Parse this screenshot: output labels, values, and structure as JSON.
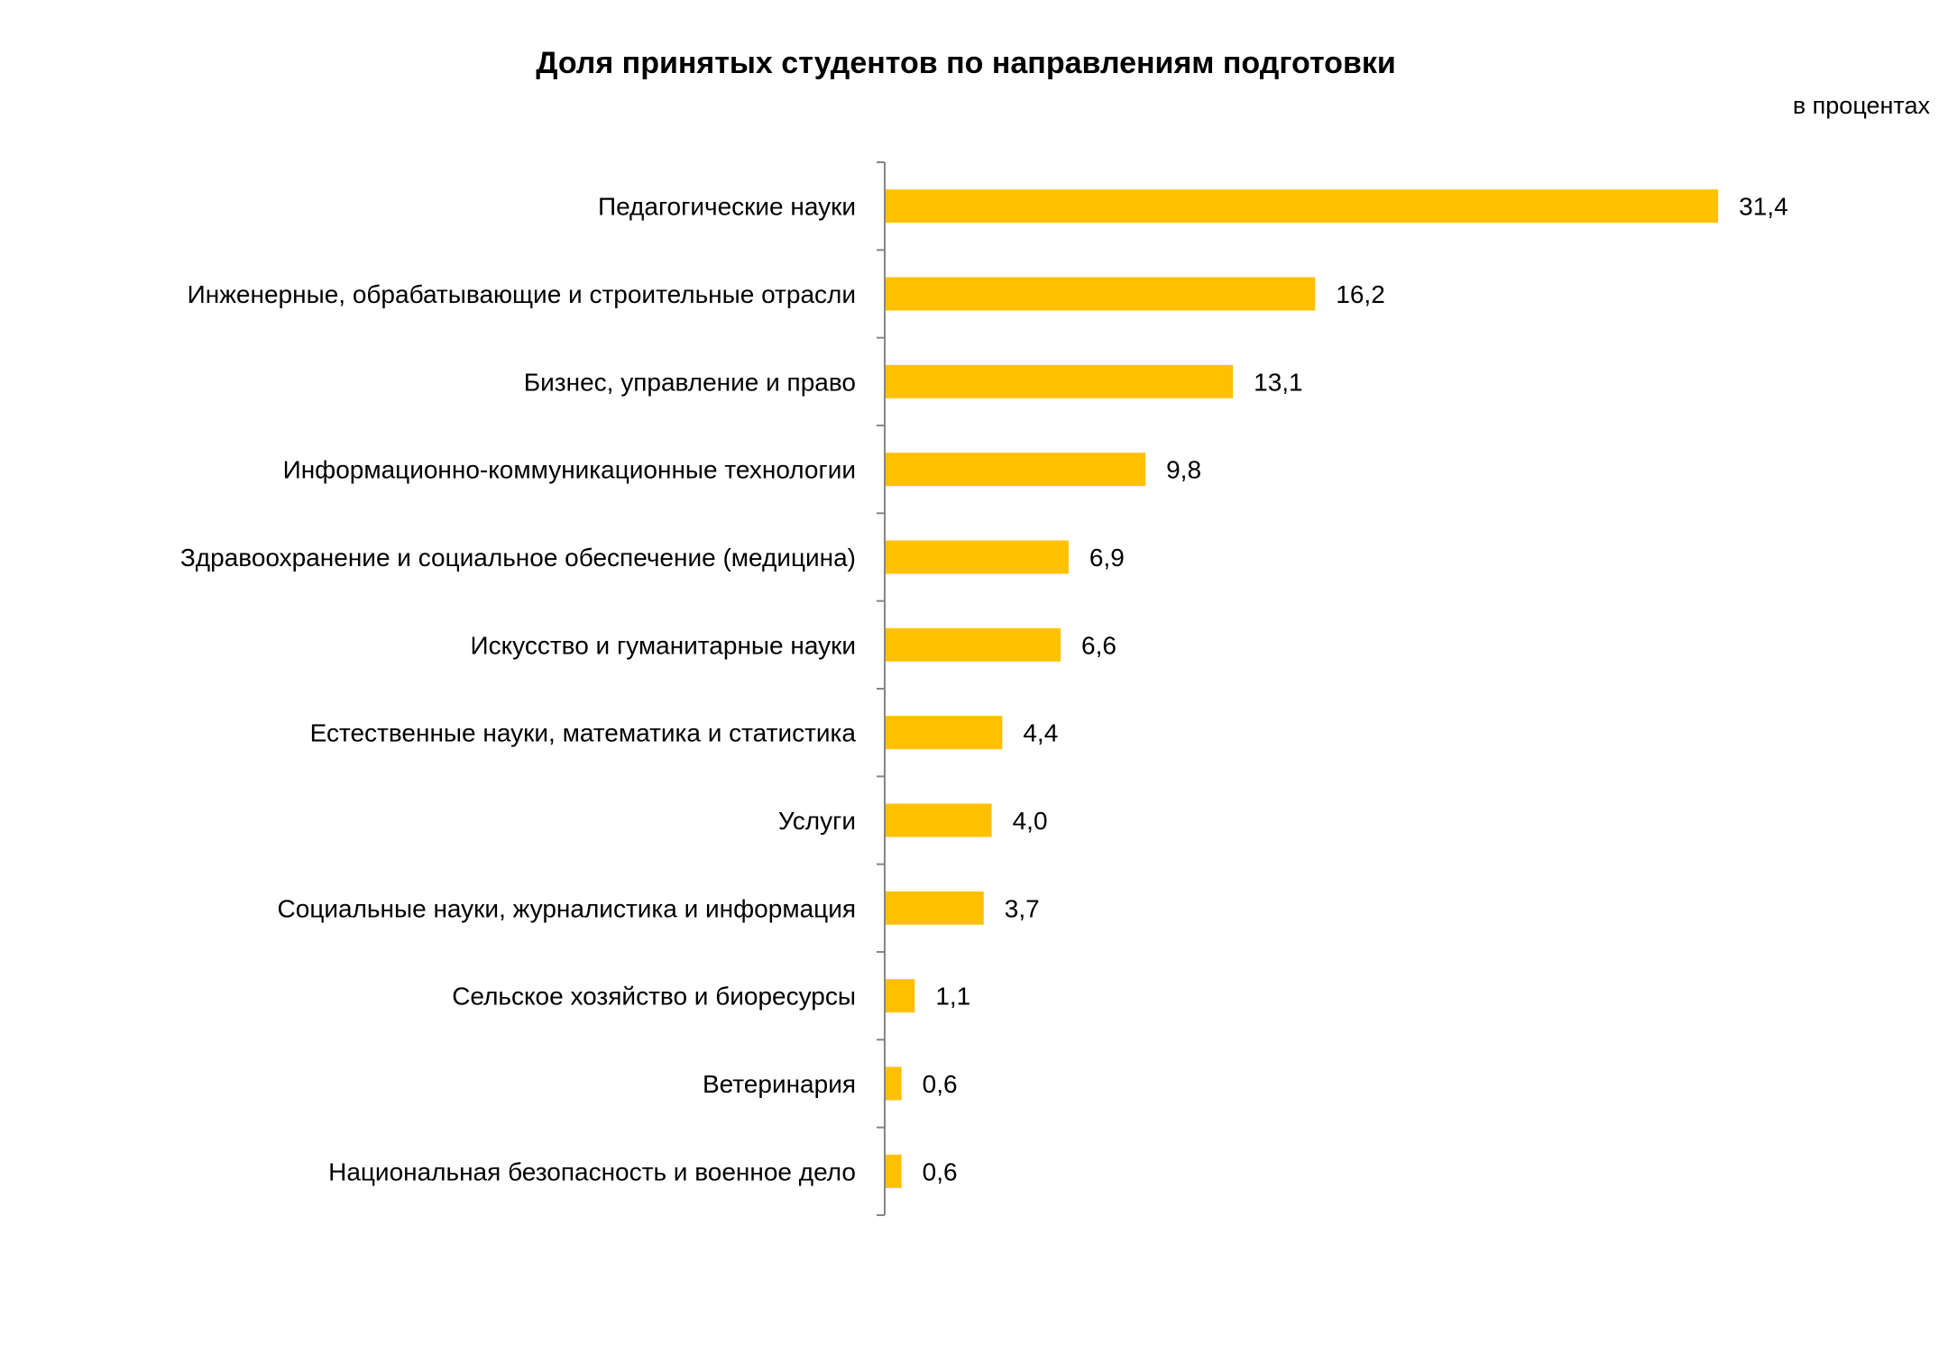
{
  "chart_data": {
    "type": "bar",
    "orientation": "horizontal",
    "title": "Доля принятых студентов по направлениям подготовки",
    "unit_label": "в процентах",
    "categories": [
      "Педагогические науки",
      "Инженерные, обрабатывающие и строительные отрасли",
      "Бизнес, управление и право",
      "Информационно-коммуникационные технологии",
      "Здравоохранение и социальное обеспечение (медицина)",
      "Искусство и гуманитарные науки",
      "Естественные науки, математика и статистика",
      "Услуги",
      "Социальные науки, журналистика и информация",
      "Сельское хозяйство и биоресурсы",
      "Ветеринария",
      "Национальная безопасность и военное дело"
    ],
    "values": [
      31.4,
      16.2,
      13.1,
      9.8,
      6.9,
      6.6,
      4.4,
      4.0,
      3.7,
      1.1,
      0.6,
      0.6
    ],
    "value_labels": [
      "31,4",
      "16,2",
      "13,1",
      "9,8",
      "6,9",
      "6,6",
      "4,4",
      "4,0",
      "3,7",
      "1,1",
      "0,6",
      "0,6"
    ],
    "xlim": [
      0,
      40
    ],
    "grid": false,
    "legend": "none",
    "bar_color": "#FFC000",
    "axis_color": "#868686"
  }
}
